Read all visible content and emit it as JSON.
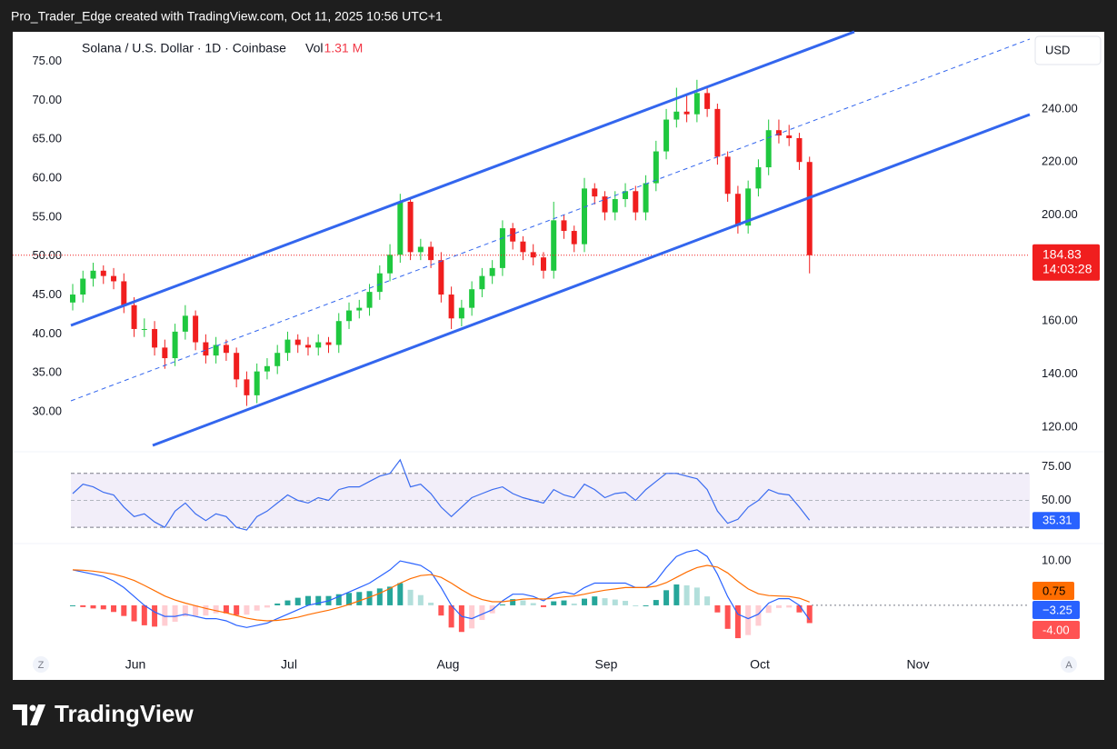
{
  "chart_data": {
    "type": "candlestick",
    "header": "Pro_Trader_Edge created with TradingView.com, Oct 11, 2025 10:56 UTC+1",
    "title": "Solana / U.S. Dollar · 1D · Coinbase",
    "volume_title": "Vol",
    "volume_text": "1.31 M",
    "currency": "USD",
    "countdown": "14:03:28",
    "brand": "TradingView",
    "buttons": [
      "Z",
      "A"
    ],
    "x_labels": [
      "Jun",
      "Jul",
      "Aug",
      "Sep",
      "Oct",
      "Nov"
    ],
    "up_color": "#1fc83f",
    "down_color": "#f01e1e",
    "open": [
      167,
      170,
      176,
      179,
      177,
      175,
      166,
      157,
      157,
      150,
      146,
      156,
      162,
      152,
      147,
      151,
      148,
      138,
      132,
      141,
      143,
      148,
      153,
      151,
      150,
      152,
      151,
      160,
      164,
      165,
      171,
      178,
      185,
      205,
      186,
      188,
      183,
      170,
      161,
      165,
      172,
      177,
      180,
      195,
      190,
      186,
      184,
      179,
      198,
      194,
      189,
      210,
      207,
      201,
      206,
      209,
      201,
      212,
      224,
      236,
      239,
      238,
      246,
      240,
      222,
      208,
      196,
      210,
      218,
      232,
      230,
      229,
      220
    ],
    "high": [
      174,
      179,
      182,
      181,
      180,
      178,
      169,
      161,
      160,
      153,
      159,
      166,
      164,
      155,
      154,
      153,
      150,
      141,
      144,
      146,
      151,
      156,
      155,
      154,
      155,
      154,
      163,
      167,
      168,
      174,
      181,
      189,
      208,
      206,
      191,
      190,
      186,
      173,
      168,
      175,
      180,
      183,
      198,
      197,
      192,
      189,
      186,
      205,
      200,
      196,
      214,
      212,
      209,
      209,
      212,
      211,
      215,
      228,
      240,
      248,
      245,
      251,
      248,
      242,
      224,
      211,
      213,
      221,
      236,
      236,
      234,
      231,
      222
    ],
    "low": [
      164,
      167,
      173,
      174,
      172,
      163,
      154,
      154,
      147,
      142,
      143,
      153,
      149,
      144,
      144,
      145,
      135,
      128,
      129,
      138,
      140,
      145,
      148,
      147,
      147,
      148,
      148,
      157,
      161,
      162,
      168,
      175,
      182,
      183,
      183,
      180,
      167,
      157,
      158,
      162,
      169,
      174,
      177,
      187,
      183,
      181,
      176,
      176,
      191,
      186,
      186,
      204,
      198,
      198,
      203,
      198,
      198,
      209,
      221,
      233,
      235,
      235,
      237,
      219,
      205,
      193,
      193,
      207,
      215,
      227,
      226,
      217,
      178
    ],
    "close": [
      170,
      176,
      179,
      177,
      175,
      166,
      157,
      157,
      150,
      146,
      156,
      162,
      152,
      147,
      151,
      148,
      138,
      132,
      141,
      143,
      148,
      153,
      151,
      150,
      152,
      151,
      160,
      164,
      165,
      171,
      178,
      185,
      205,
      186,
      188,
      183,
      170,
      161,
      165,
      172,
      177,
      180,
      195,
      190,
      186,
      184,
      179,
      198,
      194,
      189,
      210,
      207,
      201,
      206,
      209,
      201,
      212,
      224,
      236,
      239,
      238,
      246,
      240,
      222,
      208,
      196,
      210,
      218,
      232,
      230,
      229,
      220,
      184.83
    ],
    "ylim": [
      113.1,
      269.1
    ],
    "yticks": [
      {
        "value": 120,
        "label": "120.00"
      },
      {
        "value": 140,
        "label": "140.00"
      },
      {
        "value": 160,
        "label": "160.00"
      },
      {
        "value": 180,
        "label": "180.00"
      },
      {
        "value": 200,
        "label": "200.00"
      },
      {
        "value": 220,
        "label": "220.00"
      },
      {
        "value": 240,
        "label": "240.00"
      }
    ],
    "left_axis": {
      "ylim": [
        25.7,
        78.8
      ],
      "yticks": [
        {
          "value": 30,
          "label": "30.00"
        },
        {
          "value": 35,
          "label": "35.00"
        },
        {
          "value": 40,
          "label": "40.00"
        },
        {
          "value": 45,
          "label": "45.00"
        },
        {
          "value": 50,
          "label": "50.00"
        },
        {
          "value": 55,
          "label": "55.00"
        },
        {
          "value": 60,
          "label": "60.00"
        },
        {
          "value": 65,
          "label": "65.00"
        },
        {
          "value": 70,
          "label": "70.00"
        },
        {
          "value": 75,
          "label": "75.00"
        }
      ]
    },
    "rsi": {
      "color": "#3b6cf0",
      "values": [
        55,
        62,
        60,
        56,
        54,
        45,
        38,
        40,
        34,
        30,
        42,
        48,
        40,
        35,
        40,
        38,
        30,
        28,
        38,
        42,
        48,
        54,
        50,
        48,
        52,
        50,
        58,
        60,
        60,
        64,
        68,
        70,
        80,
        60,
        62,
        55,
        45,
        38,
        45,
        52,
        55,
        58,
        60,
        55,
        52,
        50,
        48,
        58,
        54,
        52,
        62,
        58,
        52,
        55,
        56,
        50,
        58,
        64,
        70,
        70,
        68,
        66,
        58,
        42,
        33,
        36,
        45,
        50,
        58,
        55,
        54,
        45,
        35.31
      ],
      "ylim": [
        20,
        84
      ],
      "yticks": [
        {
          "value": 50,
          "label": "50.00"
        },
        {
          "value": 75,
          "label": "75.00"
        }
      ],
      "bands": [
        30,
        70
      ]
    },
    "macd": {
      "ylim": [
        -8,
        13.5
      ],
      "yticks": [
        {
          "value": 10,
          "label": "10.00"
        }
      ],
      "series": [
        {
          "color": "#2962ff",
          "last_label": "−3.25",
          "values": [
            8,
            7.5,
            7,
            6.5,
            5.5,
            4,
            2,
            0,
            -1.5,
            -2.5,
            -2.5,
            -2,
            -2.5,
            -3,
            -3,
            -3.5,
            -4.5,
            -5,
            -4.5,
            -4,
            -3,
            -2,
            -1,
            0,
            0.5,
            1,
            2,
            3,
            4,
            5,
            6.5,
            8,
            10,
            9.5,
            9,
            7.5,
            4,
            0,
            -2.5,
            -3,
            -2,
            -1,
            1,
            2.5,
            2.5,
            2,
            1,
            2.5,
            3,
            2.5,
            4,
            5,
            5,
            5,
            5,
            4,
            4,
            5.5,
            8.5,
            11,
            12,
            12.5,
            11,
            7,
            2,
            -2,
            -3,
            -2,
            0.5,
            1.5,
            1.5,
            0,
            -3.25
          ]
        },
        {
          "color": "#ff6d00",
          "values": [
            8,
            7.9,
            7.7,
            7.4,
            7,
            6.4,
            5.6,
            4.5,
            3.3,
            2.1,
            1.2,
            0.5,
            -0.1,
            -0.7,
            -1.2,
            -1.7,
            -2.3,
            -2.9,
            -3.3,
            -3.5,
            -3.4,
            -3.1,
            -2.7,
            -2.1,
            -1.6,
            -1.1,
            -0.5,
            0.2,
            1,
            1.8,
            2.7,
            3.8,
            5,
            6,
            6.7,
            6.9,
            6.3,
            5,
            3.5,
            2.2,
            1.3,
            0.8,
            0.8,
            1.1,
            1.4,
            1.5,
            1.4,
            1.6,
            1.9,
            2.1,
            2.5,
            3,
            3.4,
            3.7,
            4,
            4,
            4,
            4.3,
            5.1,
            6.3,
            7.5,
            8.5,
            9,
            8.6,
            7.3,
            5.4,
            3.7,
            2.6,
            2.2,
            2.1,
            2,
            1.6,
            0.75
          ]
        }
      ],
      "histogram": {
        "colors": [
          "#26a69a",
          "#b2dfdb",
          "#ff5252",
          "#ffcdd2"
        ],
        "last_label": "-4.00",
        "values": [
          0,
          -0.4,
          -0.7,
          -0.9,
          -1.5,
          -2.4,
          -3.6,
          -4.5,
          -4.8,
          -4.6,
          -3.7,
          -2.5,
          -2.4,
          -2.3,
          -1.8,
          -1.8,
          -2.2,
          -2.1,
          -1.2,
          -0.5,
          0.4,
          1.1,
          1.7,
          2.1,
          2.1,
          2.1,
          2.5,
          2.8,
          3,
          3.2,
          3.8,
          4.2,
          5,
          3.5,
          2.3,
          0.6,
          -2.3,
          -5,
          -6,
          -5.2,
          -3.3,
          -1.8,
          0.2,
          1.4,
          1.1,
          0.5,
          -0.4,
          0.9,
          1.1,
          0.4,
          1.5,
          2,
          1.6,
          1.3,
          1,
          0,
          0,
          1.2,
          3.4,
          4.7,
          4.5,
          4,
          2,
          -1.6,
          -5.3,
          -7.4,
          -6.7,
          -4.6,
          -1.7,
          -0.6,
          -0.5,
          -1.6,
          -4
        ]
      }
    }
  }
}
